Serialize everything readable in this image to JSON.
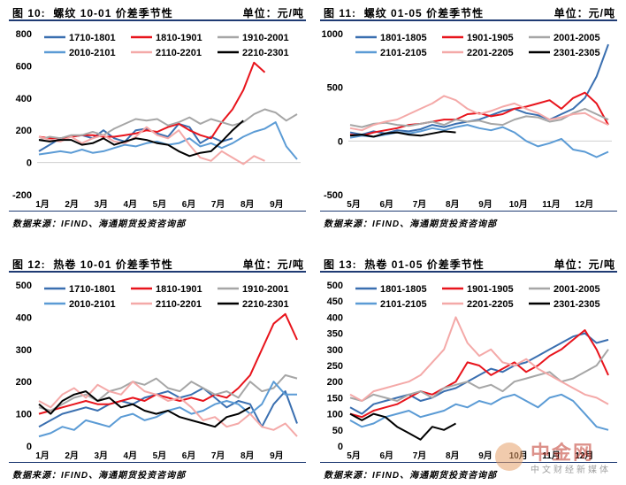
{
  "source_text": "数据来源：IFIND、海通期货投资咨询部",
  "unit_text": "单位：元/吨",
  "watermark": {
    "name": "中金网",
    "tagline": "中文财经新媒体",
    "brand": "海通期货"
  },
  "panels": [
    {
      "figure_label": "图 10:",
      "title": "螺纹 10-01 价差季节性",
      "chart_data": {
        "type": "line",
        "ylim": [
          -200,
          800
        ],
        "yticks": [
          -200,
          0,
          200,
          400,
          600,
          800
        ],
        "xticks": [
          "1月",
          "2月",
          "3月",
          "4月",
          "5月",
          "6月",
          "7月",
          "8月",
          "9月"
        ],
        "series": [
          {
            "name": "1710-1801",
            "color": "#3a6fb0",
            "values": [
              70,
              110,
              150,
              160,
              170,
              150,
              200,
              150,
              130,
              200,
              210,
              180,
              160,
              240,
              220,
              120,
              160,
              130,
              150
            ]
          },
          {
            "name": "1810-1901",
            "color": "#e8141c",
            "values": [
              160,
              150,
              150,
              160,
              170,
              170,
              160,
              160,
              170,
              180,
              200,
              190,
              220,
              240,
              200,
              170,
              150,
              250,
              330,
              450,
              620,
              560
            ]
          },
          {
            "name": "1910-2001",
            "color": "#a6a6a6",
            "values": [
              140,
              160,
              150,
              170,
              170,
              190,
              170,
              210,
              240,
              270,
              260,
              270,
              230,
              250,
              280,
              240,
              270,
              250,
              230,
              250,
              300,
              330,
              310,
              260,
              300
            ]
          },
          {
            "name": "2010-2101",
            "color": "#5b9bd5",
            "values": [
              50,
              60,
              70,
              60,
              80,
              60,
              70,
              90,
              110,
              100,
              120,
              130,
              110,
              120,
              150,
              100,
              120,
              90,
              120,
              160,
              190,
              210,
              250,
              100,
              20
            ]
          },
          {
            "name": "2110-2201",
            "color": "#f4a9a8",
            "values": [
              160,
              140,
              130,
              160,
              120,
              150,
              170,
              130,
              120,
              160,
              220,
              170,
              150,
              200,
              110,
              30,
              10,
              70,
              30,
              -10,
              40,
              10
            ]
          },
          {
            "name": "2210-2301",
            "color": "#000000",
            "values": [
              140,
              130,
              140,
              140,
              110,
              120,
              150,
              110,
              130,
              150,
              140,
              120,
              110,
              70,
              40,
              60,
              70,
              130,
              200,
              260
            ]
          }
        ]
      }
    },
    {
      "figure_label": "图 11:",
      "title": "螺纹 01-05 价差季节性",
      "chart_data": {
        "type": "line",
        "ylim": [
          -500,
          1000
        ],
        "yticks": [
          -500,
          0,
          500,
          1000
        ],
        "xticks": [
          "5月",
          "6月",
          "7月",
          "8月",
          "9月",
          "10月",
          "11月",
          "12月"
        ],
        "series": [
          {
            "name": "1801-1805",
            "color": "#3a6fb0",
            "values": [
              80,
              60,
              90,
              70,
              100,
              90,
              110,
              150,
              130,
              160,
              180,
              200,
              240,
              280,
              300,
              260,
              240,
              200,
              250,
              300,
              400,
              600,
              900
            ]
          },
          {
            "name": "1901-1905",
            "color": "#e8141c",
            "values": [
              60,
              50,
              80,
              100,
              120,
              150,
              160,
              180,
              200,
              200,
              250,
              260,
              230,
              250,
              300,
              320,
              350,
              380,
              300,
              400,
              450,
              350,
              150
            ]
          },
          {
            "name": "2001-2005",
            "color": "#a6a6a6",
            "values": [
              150,
              130,
              160,
              170,
              150,
              140,
              160,
              180,
              150,
              200,
              180,
              190,
              160,
              150,
              200,
              230,
              220,
              180,
              200,
              260,
              300,
              250,
              200
            ]
          },
          {
            "name": "2101-2105",
            "color": "#5b9bd5",
            "values": [
              30,
              50,
              40,
              60,
              80,
              70,
              90,
              120,
              100,
              130,
              150,
              120,
              100,
              130,
              80,
              0,
              -50,
              -20,
              20,
              -80,
              -100,
              -150,
              -100
            ]
          },
          {
            "name": "2201-2205",
            "color": "#f4a9a8",
            "values": [
              120,
              100,
              150,
              180,
              200,
              250,
              300,
              350,
              420,
              380,
              300,
              250,
              280,
              320,
              350,
              300,
              260,
              200,
              220,
              250,
              260,
              200,
              150
            ]
          },
          {
            "name": "2301-2305",
            "color": "#000000",
            "values": [
              50,
              60,
              40,
              70,
              80,
              60,
              50,
              70,
              90,
              80
            ]
          }
        ]
      }
    },
    {
      "figure_label": "图 12:",
      "title": "热卷 10-01 价差季节性",
      "chart_data": {
        "type": "line",
        "ylim": [
          0,
          500
        ],
        "yticks": [
          0,
          100,
          200,
          300,
          400,
          500
        ],
        "xticks": [
          "1月",
          "2月",
          "3月",
          "4月",
          "5月",
          "6月",
          "7月",
          "8月",
          "9月"
        ],
        "series": [
          {
            "name": "1710-1801",
            "color": "#3a6fb0",
            "values": [
              60,
              80,
              100,
              110,
              120,
              110,
              130,
              140,
              130,
              150,
              160,
              170,
              150,
              160,
              180,
              150,
              120,
              140,
              130,
              60,
              130,
              170,
              70
            ]
          },
          {
            "name": "1810-1901",
            "color": "#e8141c",
            "values": [
              100,
              110,
              120,
              130,
              140,
              130,
              130,
              140,
              150,
              140,
              160,
              150,
              140,
              150,
              140,
              160,
              150,
              180,
              220,
              300,
              380,
              410,
              330
            ]
          },
          {
            "name": "1910-2001",
            "color": "#a6a6a6",
            "values": [
              120,
              110,
              130,
              150,
              160,
              140,
              170,
              180,
              200,
              190,
              210,
              180,
              170,
              200,
              180,
              160,
              170,
              150,
              200,
              170,
              180,
              220,
              210
            ]
          },
          {
            "name": "2010-2101",
            "color": "#5b9bd5",
            "values": [
              30,
              40,
              60,
              50,
              80,
              70,
              60,
              90,
              100,
              80,
              90,
              110,
              120,
              100,
              110,
              130,
              140,
              130,
              100,
              130,
              200,
              160,
              160
            ]
          },
          {
            "name": "2110-2201",
            "color": "#f4a9a8",
            "values": [
              140,
              120,
              160,
              180,
              150,
              190,
              170,
              160,
              200,
              170,
              160,
              140,
              150,
              120,
              80,
              90,
              60,
              70,
              100,
              60,
              50,
              70,
              30
            ]
          },
          {
            "name": "2210-2301",
            "color": "#000000",
            "values": [
              130,
              100,
              140,
              160,
              170,
              140,
              150,
              120,
              130,
              110,
              100,
              110,
              90,
              80,
              70,
              60,
              90,
              100,
              120
            ]
          }
        ]
      }
    },
    {
      "figure_label": "图 13:",
      "title": "热卷 01-05 价差季节性",
      "chart_data": {
        "type": "line",
        "ylim": [
          0,
          500
        ],
        "yticks": [
          0,
          50,
          100,
          150,
          200,
          250,
          300,
          350,
          400,
          450,
          500
        ],
        "xticks": [
          "5月",
          "6月",
          "7月",
          "8月",
          "9月",
          "10月",
          "11月",
          "12月"
        ],
        "series": [
          {
            "name": "1801-1805",
            "color": "#3a6fb0",
            "values": [
              120,
              100,
              130,
              140,
              150,
              160,
              140,
              150,
              170,
              180,
              200,
              220,
              240,
              230,
              250,
              260,
              280,
              300,
              320,
              340,
              350,
              320,
              330
            ]
          },
          {
            "name": "1901-1905",
            "color": "#e8141c",
            "values": [
              100,
              90,
              110,
              120,
              130,
              150,
              170,
              160,
              180,
              200,
              260,
              250,
              220,
              240,
              260,
              230,
              250,
              280,
              300,
              330,
              360,
              300,
              220
            ]
          },
          {
            "name": "2001-2005",
            "color": "#a6a6a6",
            "values": [
              150,
              140,
              160,
              150,
              140,
              160,
              170,
              150,
              180,
              190,
              200,
              180,
              190,
              170,
              200,
              210,
              220,
              230,
              200,
              210,
              230,
              250,
              300
            ]
          },
          {
            "name": "2101-2105",
            "color": "#5b9bd5",
            "values": [
              80,
              60,
              70,
              90,
              100,
              110,
              90,
              100,
              110,
              130,
              120,
              140,
              130,
              150,
              160,
              140,
              120,
              150,
              160,
              140,
              100,
              60,
              50
            ]
          },
          {
            "name": "2201-2205",
            "color": "#f4a9a8",
            "values": [
              160,
              140,
              170,
              180,
              190,
              200,
              220,
              260,
              300,
              400,
              320,
              280,
              300,
              260,
              250,
              270,
              240,
              220,
              200,
              180,
              160,
              150,
              130
            ]
          },
          {
            "name": "2301-2305",
            "color": "#000000",
            "values": [
              100,
              80,
              100,
              90,
              60,
              40,
              20,
              60,
              50,
              70
            ]
          }
        ]
      }
    }
  ]
}
